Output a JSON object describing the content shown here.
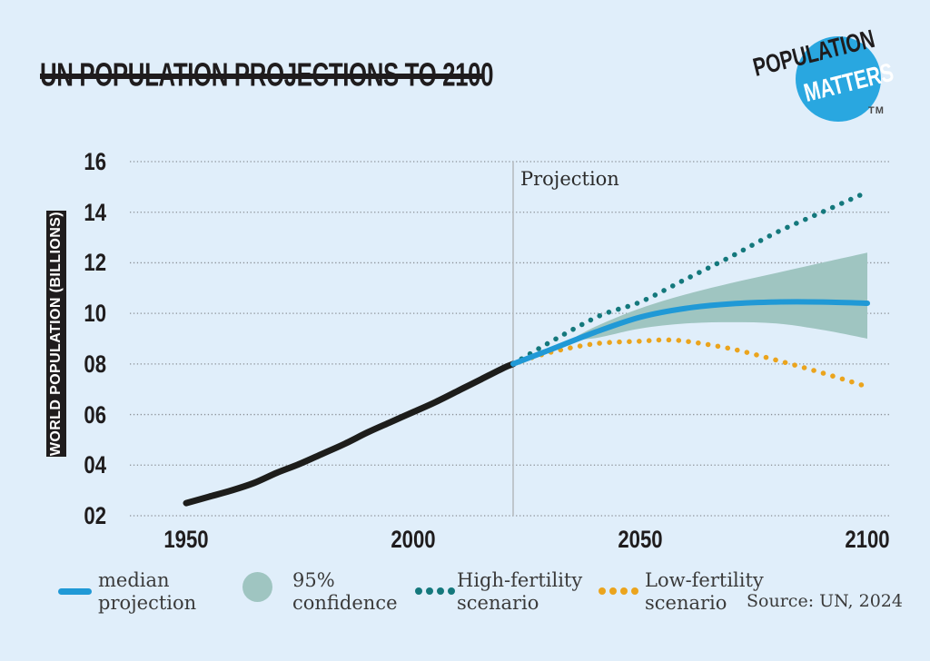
{
  "page": {
    "background": "#e0eefa"
  },
  "header": {
    "title": "UN POPULATION PROJECTIONS TO 2100"
  },
  "logo": {
    "word1": "POPULATION",
    "word2": "MATTERS",
    "trademark": "TM",
    "circle_color": "#29a7e0"
  },
  "chart_data": {
    "type": "line",
    "title": "UN POPULATION PROJECTIONS TO 2100",
    "ylabel": "WORLD POPULATION (BILLIONS)",
    "annotation": "Projection",
    "projection_start_year": 2022,
    "x_ticks": [
      1950,
      2000,
      2050,
      2100
    ],
    "y_ticks": [
      "16",
      "14",
      "12",
      "10",
      "08",
      "06",
      "04",
      "02"
    ],
    "y_tick_values": [
      16,
      14,
      12,
      10,
      8,
      6,
      4,
      2
    ],
    "xlim": [
      1938,
      2105
    ],
    "ylim": [
      2,
      16
    ],
    "grid": "dotted",
    "grid_color": "#8a9096",
    "divider_color": "#a9abad",
    "series": [
      {
        "name": "High-fertility scenario",
        "color": "#14787c",
        "style": "dotted",
        "width": 5.5,
        "points": [
          [
            2022,
            8.0
          ],
          [
            2030,
            8.85
          ],
          [
            2041,
            9.9
          ],
          [
            2050,
            10.45
          ],
          [
            2060,
            11.35
          ],
          [
            2070,
            12.25
          ],
          [
            2080,
            13.2
          ],
          [
            2090,
            14.0
          ],
          [
            2100,
            14.8
          ]
        ]
      },
      {
        "name": "Low-fertility scenario",
        "color": "#eba41d",
        "style": "dotted",
        "width": 5.5,
        "points": [
          [
            2022,
            8.0
          ],
          [
            2030,
            8.45
          ],
          [
            2040,
            8.8
          ],
          [
            2050,
            8.9
          ],
          [
            2055,
            8.95
          ],
          [
            2060,
            8.9
          ],
          [
            2070,
            8.6
          ],
          [
            2080,
            8.15
          ],
          [
            2090,
            7.65
          ],
          [
            2100,
            7.1
          ]
        ]
      },
      {
        "name": "historical",
        "color": "#1d1d1b",
        "style": "solid",
        "width": 7,
        "points": [
          [
            1950,
            2.5
          ],
          [
            1955,
            2.75
          ],
          [
            1960,
            3.0
          ],
          [
            1965,
            3.3
          ],
          [
            1970,
            3.7
          ],
          [
            1975,
            4.05
          ],
          [
            1980,
            4.45
          ],
          [
            1985,
            4.85
          ],
          [
            1990,
            5.3
          ],
          [
            1995,
            5.7
          ],
          [
            2000,
            6.1
          ],
          [
            2005,
            6.5
          ],
          [
            2010,
            6.95
          ],
          [
            2015,
            7.4
          ],
          [
            2020,
            7.85
          ],
          [
            2022,
            8.0
          ]
        ]
      },
      {
        "name": "median projection",
        "color": "#2099d6",
        "style": "solid",
        "width": 6,
        "points": [
          [
            2022,
            8.0
          ],
          [
            2030,
            8.55
          ],
          [
            2040,
            9.25
          ],
          [
            2050,
            9.85
          ],
          [
            2060,
            10.2
          ],
          [
            2070,
            10.38
          ],
          [
            2080,
            10.45
          ],
          [
            2090,
            10.45
          ],
          [
            2100,
            10.4
          ]
        ]
      }
    ],
    "confidence_band": {
      "name": "95% confidence",
      "color": "#9fc5c1",
      "upper": [
        [
          2036,
          9.1
        ],
        [
          2041,
          9.55
        ],
        [
          2050,
          10.2
        ],
        [
          2060,
          10.75
        ],
        [
          2070,
          11.2
        ],
        [
          2080,
          11.6
        ],
        [
          2090,
          12.0
        ],
        [
          2100,
          12.4
        ]
      ],
      "lower": [
        [
          2036,
          8.95
        ],
        [
          2041,
          9.05
        ],
        [
          2050,
          9.4
        ],
        [
          2060,
          9.6
        ],
        [
          2070,
          9.65
        ],
        [
          2080,
          9.6
        ],
        [
          2090,
          9.35
        ],
        [
          2100,
          9.0
        ]
      ]
    }
  },
  "legend": {
    "items": [
      {
        "line1": "median",
        "line2": "projection"
      },
      {
        "line1": "95%",
        "line2": "confidence"
      },
      {
        "line1": "High-fertility",
        "line2": "scenario"
      },
      {
        "line1": "Low-fertility",
        "line2": "scenario"
      }
    ],
    "source": "Source: UN, 2024"
  }
}
